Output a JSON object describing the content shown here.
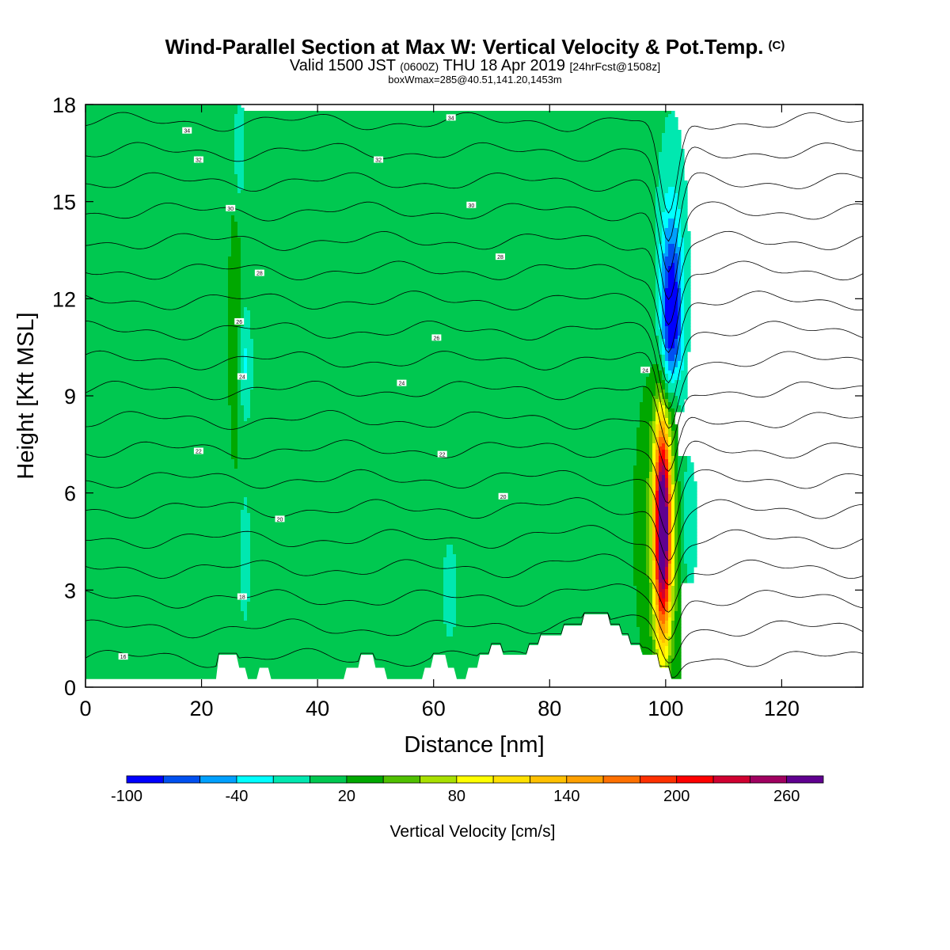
{
  "title": {
    "main": "Wind-Parallel Section at Max W: Vertical Velocity & Pot.Temp.",
    "copyright": "(C)",
    "valid_prefix": "Valid 1500 JST",
    "valid_utc": "(0600Z)",
    "valid_date": "THU 18 Apr 2019",
    "forecast": "[24hrFcst@1508z]",
    "boxmax": "boxWmax=285@40.51,141.20,1453m"
  },
  "colorbar": {
    "label": "Vertical Velocity [cm/s]",
    "ticks": [
      "-100",
      "-40",
      "20",
      "80",
      "140",
      "200",
      "260"
    ],
    "tick_values": [
      -100,
      -40,
      20,
      80,
      140,
      200,
      260
    ],
    "boundaries": [
      -100,
      -80,
      -60,
      -40,
      -20,
      0,
      20,
      40,
      60,
      80,
      100,
      120,
      140,
      160,
      180,
      200,
      220,
      240,
      260,
      280
    ],
    "colors": [
      "#0000ff",
      "#0050f0",
      "#00a0ff",
      "#00ffff",
      "#00e8b0",
      "#00c850",
      "#00a800",
      "#50c000",
      "#a8e000",
      "#ffff00",
      "#ffe000",
      "#ffc000",
      "#ffa000",
      "#ff7000",
      "#ff3000",
      "#ff0000",
      "#d00030",
      "#a00060",
      "#600090"
    ]
  },
  "chart_data": {
    "type": "heatmap",
    "title": "Wind-Parallel Section at Max W: Vertical Velocity & Pot.Temp.",
    "xlabel": "Distance [nm]",
    "ylabel": "Height [Kft MSL]",
    "xlim": [
      0,
      134
    ],
    "ylim": [
      0,
      18
    ],
    "x_ticks": [
      0,
      20,
      40,
      60,
      80,
      100,
      120
    ],
    "y_ticks": [
      0,
      3,
      6,
      9,
      12,
      15,
      18
    ],
    "background_value_cm_s": 10,
    "w_features": [
      {
        "x": 99.5,
        "y": 5.0,
        "dx": 1.0,
        "dy": 2.4,
        "peak": 285
      },
      {
        "x": 99.5,
        "y": 5.0,
        "dx": 3.2,
        "dy": 3.6,
        "peak": 35
      },
      {
        "x": 101.0,
        "y": 11.2,
        "dx": 1.3,
        "dy": 2.0,
        "peak": -100
      },
      {
        "x": 101.0,
        "y": 12.5,
        "dx": 1.9,
        "dy": 3.5,
        "peak": -30
      },
      {
        "x": 104.0,
        "y": 5.0,
        "dx": 1.1,
        "dy": 1.8,
        "peak": -35
      },
      {
        "x": 27.5,
        "y": 10.0,
        "dx": 0.8,
        "dy": 1.2,
        "peak": -35
      },
      {
        "x": 27.5,
        "y": 4.0,
        "dx": 0.6,
        "dy": 1.3,
        "peak": -30
      },
      {
        "x": 25.8,
        "y": 11.0,
        "dx": 0.8,
        "dy": 3.0,
        "peak": 28
      },
      {
        "x": 62.8,
        "y": 3.0,
        "dx": 0.8,
        "dy": 1.0,
        "peak": -30
      },
      {
        "x": 26.5,
        "y": 16.5,
        "dx": 0.7,
        "dy": 1.2,
        "peak": -28
      },
      {
        "x": 101.5,
        "y": 9.0,
        "dx": 0.7,
        "dy": 1.0,
        "peak": 35
      }
    ],
    "terrain_height_kft": [
      {
        "x": 0,
        "h": 0.25
      },
      {
        "x": 22.5,
        "h": 0.25
      },
      {
        "x": 23,
        "h": 1.0
      },
      {
        "x": 26,
        "h": 1.0
      },
      {
        "x": 26.5,
        "h": 0.6
      },
      {
        "x": 27.5,
        "h": 0.6
      },
      {
        "x": 28,
        "h": 0.25
      },
      {
        "x": 29.5,
        "h": 0.25
      },
      {
        "x": 30,
        "h": 0.6
      },
      {
        "x": 31.5,
        "h": 0.6
      },
      {
        "x": 32,
        "h": 0.25
      },
      {
        "x": 44.5,
        "h": 0.25
      },
      {
        "x": 45,
        "h": 0.6
      },
      {
        "x": 47,
        "h": 0.6
      },
      {
        "x": 47.5,
        "h": 1.0
      },
      {
        "x": 49.5,
        "h": 1.0
      },
      {
        "x": 50,
        "h": 0.6
      },
      {
        "x": 51.5,
        "h": 0.6
      },
      {
        "x": 52,
        "h": 0.25
      },
      {
        "x": 58,
        "h": 0.25
      },
      {
        "x": 58.5,
        "h": 0.6
      },
      {
        "x": 59.5,
        "h": 0.6
      },
      {
        "x": 60,
        "h": 1.0
      },
      {
        "x": 62,
        "h": 1.0
      },
      {
        "x": 62.5,
        "h": 0.6
      },
      {
        "x": 63.5,
        "h": 0.6
      },
      {
        "x": 64,
        "h": 0.25
      },
      {
        "x": 65.5,
        "h": 0.25
      },
      {
        "x": 66,
        "h": 0.6
      },
      {
        "x": 67.5,
        "h": 0.6
      },
      {
        "x": 68,
        "h": 1.0
      },
      {
        "x": 69.5,
        "h": 1.0
      },
      {
        "x": 70,
        "h": 1.3
      },
      {
        "x": 71.5,
        "h": 1.3
      },
      {
        "x": 72,
        "h": 1.0
      },
      {
        "x": 76,
        "h": 1.0
      },
      {
        "x": 76.5,
        "h": 1.3
      },
      {
        "x": 78,
        "h": 1.3
      },
      {
        "x": 78.5,
        "h": 1.6
      },
      {
        "x": 82,
        "h": 1.6
      },
      {
        "x": 82.5,
        "h": 1.9
      },
      {
        "x": 85.5,
        "h": 1.9
      },
      {
        "x": 86,
        "h": 2.25
      },
      {
        "x": 90,
        "h": 2.25
      },
      {
        "x": 90.5,
        "h": 1.9
      },
      {
        "x": 92,
        "h": 1.9
      },
      {
        "x": 92.5,
        "h": 1.6
      },
      {
        "x": 93.5,
        "h": 1.6
      },
      {
        "x": 94,
        "h": 1.3
      },
      {
        "x": 95.5,
        "h": 1.3
      },
      {
        "x": 96,
        "h": 1.0
      },
      {
        "x": 98.5,
        "h": 1.0
      },
      {
        "x": 99,
        "h": 0.6
      },
      {
        "x": 100.5,
        "h": 0.6
      },
      {
        "x": 101,
        "h": 0.25
      },
      {
        "x": 134,
        "h": 0.25
      }
    ],
    "theta_contours": {
      "levels_deg_c": [
        16,
        18,
        20,
        22,
        24,
        26,
        28,
        30,
        32,
        34
      ],
      "labels": [
        {
          "text": "16",
          "x": 6.5,
          "y": 0.95
        },
        {
          "text": "18",
          "x": 27.0,
          "y": 2.8
        },
        {
          "text": "20",
          "x": 33.5,
          "y": 5.2
        },
        {
          "text": "20",
          "x": 72.0,
          "y": 5.9
        },
        {
          "text": "22",
          "x": 19.5,
          "y": 7.3
        },
        {
          "text": "22",
          "x": 61.5,
          "y": 7.2
        },
        {
          "text": "24",
          "x": 27.0,
          "y": 9.6
        },
        {
          "text": "24",
          "x": 54.5,
          "y": 9.4
        },
        {
          "text": "24",
          "x": 96.5,
          "y": 9.8
        },
        {
          "text": "26",
          "x": 26.5,
          "y": 11.3
        },
        {
          "text": "26",
          "x": 60.5,
          "y": 10.8
        },
        {
          "text": "28",
          "x": 30.0,
          "y": 12.8
        },
        {
          "text": "28",
          "x": 71.5,
          "y": 13.3
        },
        {
          "text": "30",
          "x": 25.0,
          "y": 14.8
        },
        {
          "text": "30",
          "x": 66.5,
          "y": 14.9
        },
        {
          "text": "32",
          "x": 19.5,
          "y": 16.3
        },
        {
          "text": "32",
          "x": 50.5,
          "y": 16.3
        },
        {
          "text": "34",
          "x": 17.5,
          "y": 17.2
        },
        {
          "text": "34",
          "x": 63.0,
          "y": 17.6
        }
      ]
    }
  }
}
